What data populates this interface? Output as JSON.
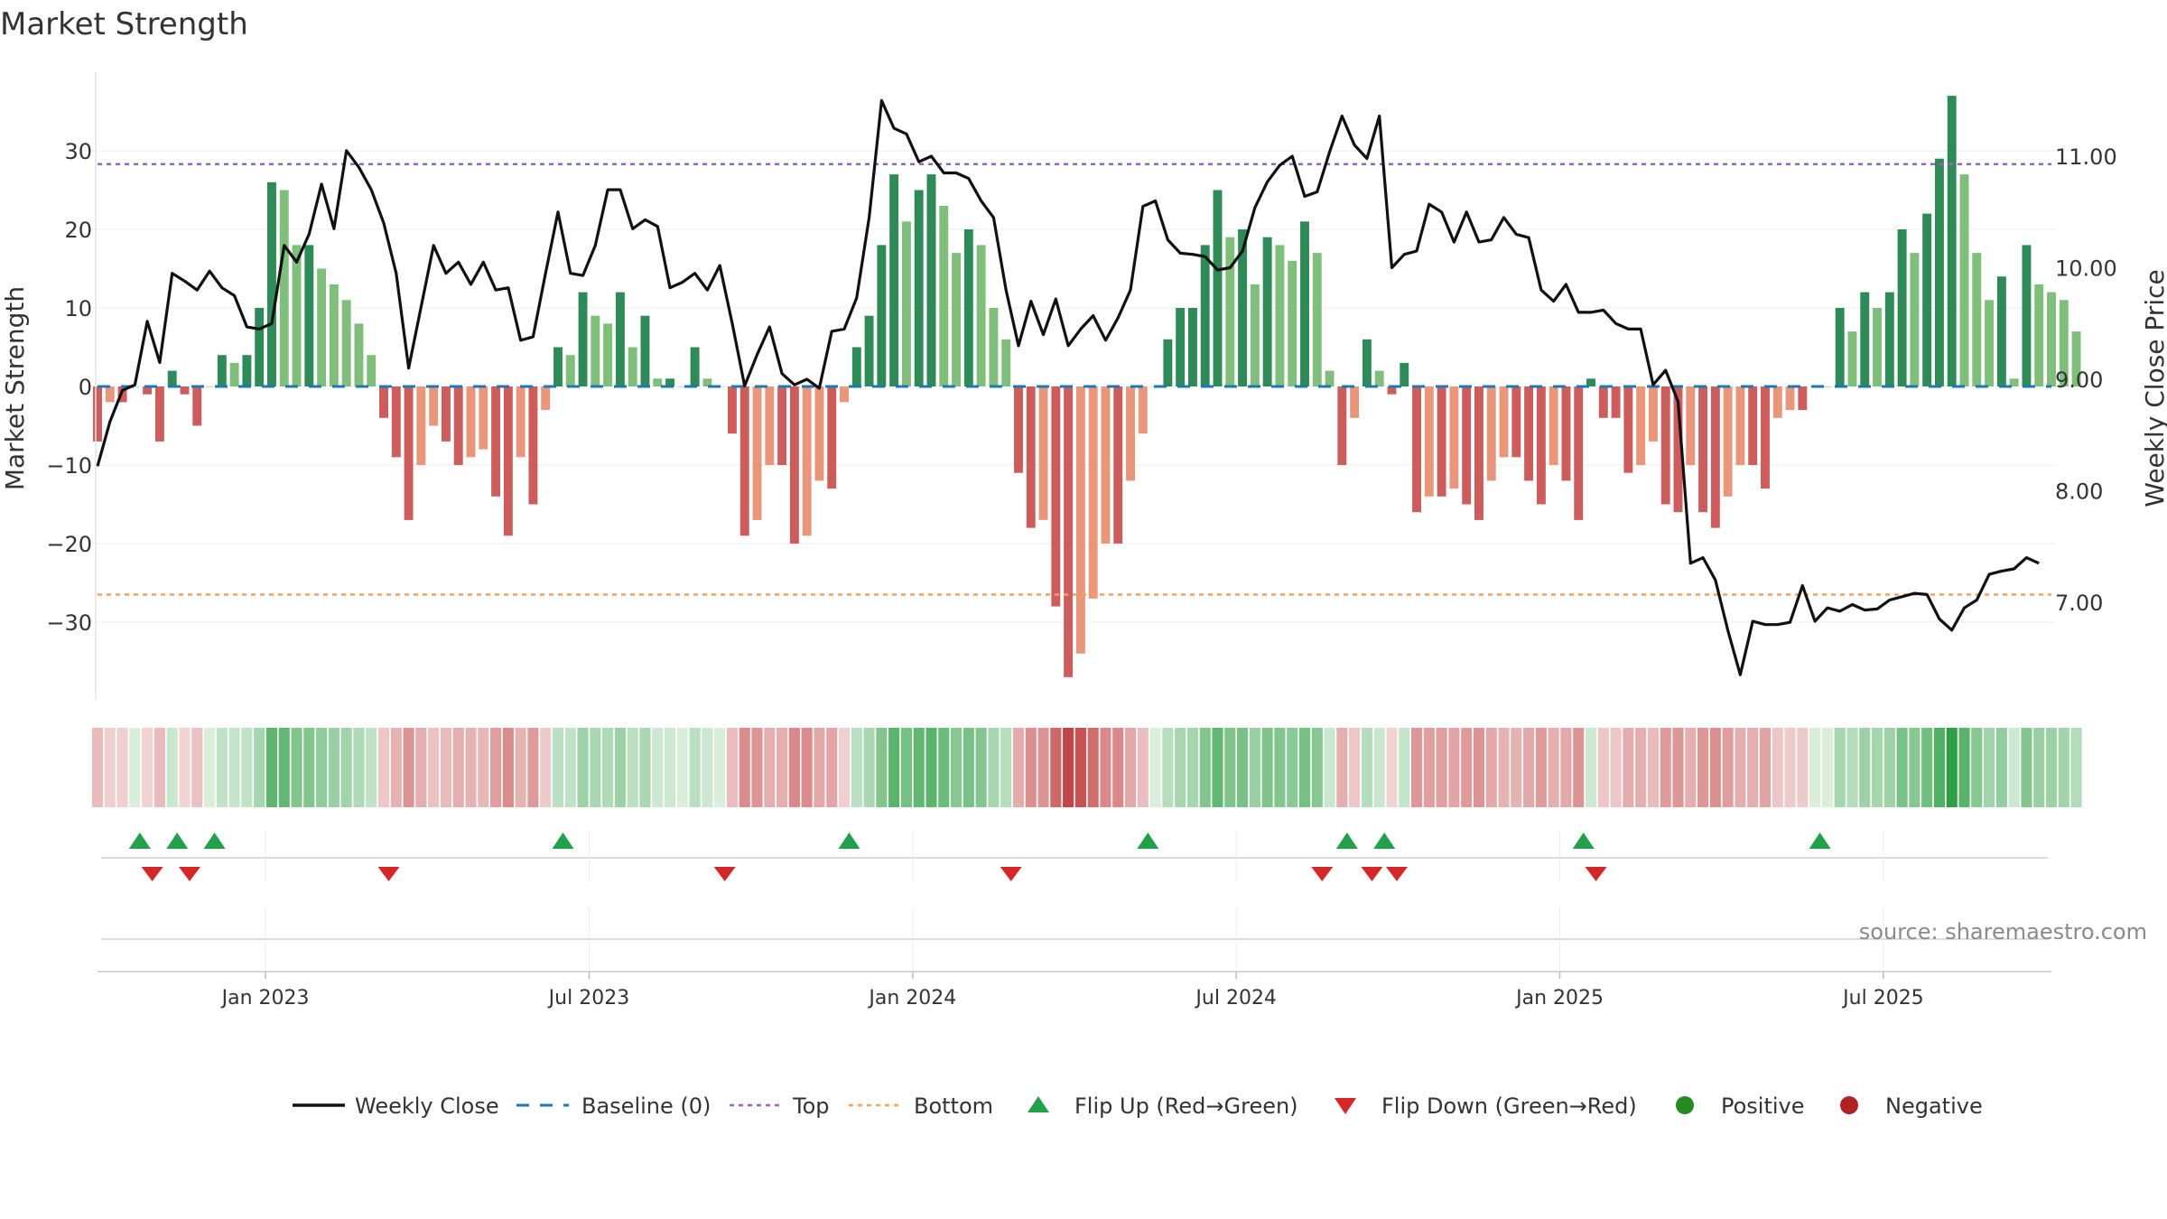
{
  "chart_data": {
    "type": "bar",
    "title": "Market Strength",
    "ylabel": "Market Strength",
    "y2label": "Weekly Close Price",
    "source": "source: sharemaestro.com",
    "ylim": [
      -40,
      40
    ],
    "y_ticks": [
      30,
      20,
      10,
      0,
      -10,
      -20,
      -30
    ],
    "y_tick_labels": [
      "30",
      "20",
      "10",
      "0",
      "−10",
      "−20",
      "−30"
    ],
    "y2lim": [
      6.0,
      11.75
    ],
    "y2_ticks": [
      11.0,
      10.0,
      9.0,
      8.0,
      7.0
    ],
    "y2_tick_labels": [
      "11.00",
      "10.00",
      "9.00",
      "8.00",
      "7.00"
    ],
    "top_level": 28.3,
    "bottom_level": -26.5,
    "x_ticks": [
      {
        "label": "Jan 2023",
        "week": 20
      },
      {
        "label": "Jul 2023",
        "week": 46
      },
      {
        "label": "Jan 2024",
        "week": 72
      },
      {
        "label": "Jul 2024",
        "week": 98
      },
      {
        "label": "Jan 2025",
        "week": 124
      },
      {
        "label": "Jul 2025",
        "week": 150
      }
    ],
    "start_week": 6.5,
    "weeks": 158,
    "strength": [
      -7,
      -2,
      -2,
      0,
      -1,
      -7,
      2,
      -1,
      -5,
      0,
      4,
      3,
      4,
      10,
      26,
      25,
      18,
      18,
      15,
      13,
      11,
      8,
      4,
      -4,
      -9,
      -17,
      -10,
      -5,
      -7,
      -10,
      -9,
      -8,
      -14,
      -19,
      -9,
      -15,
      -3,
      5,
      4,
      12,
      9,
      8,
      12,
      5,
      9,
      1,
      1,
      0,
      5,
      1,
      0,
      -6,
      -19,
      -17,
      -10,
      -10,
      -20,
      -19,
      -12,
      -13,
      -2,
      5,
      9,
      18,
      27,
      21,
      25,
      27,
      23,
      17,
      20,
      18,
      10,
      6,
      -11,
      -18,
      -17,
      -28,
      -37,
      -34,
      -27,
      -20,
      -20,
      -12,
      -6,
      0,
      6,
      10,
      10,
      18,
      25,
      19,
      20,
      13,
      19,
      18,
      16,
      21,
      17,
      2,
      -10,
      -4,
      6,
      2,
      -1,
      3,
      -16,
      -14,
      -14,
      -13,
      -15,
      -17,
      -12,
      -9,
      -9,
      -12,
      -15,
      -10,
      -12,
      -17,
      1,
      -4,
      -4,
      -11,
      -10,
      -7,
      -15,
      -16,
      -10,
      -16,
      -18,
      -14,
      -10,
      -10,
      -13,
      -4,
      -3,
      -3,
      0,
      0,
      10,
      7,
      12,
      10,
      12,
      20,
      17,
      22,
      29,
      37,
      27,
      17,
      11,
      14,
      1,
      18,
      13,
      12,
      11,
      7
    ],
    "close": [
      8.22,
      8.62,
      8.9,
      8.95,
      9.52,
      9.15,
      9.95,
      9.88,
      9.8,
      9.97,
      9.82,
      9.75,
      9.47,
      9.45,
      9.5,
      10.2,
      10.05,
      10.3,
      10.75,
      10.35,
      11.05,
      10.9,
      10.7,
      10.4,
      9.95,
      9.1,
      9.65,
      10.2,
      9.95,
      10.05,
      9.85,
      10.05,
      9.8,
      9.82,
      9.35,
      9.38,
      9.95,
      10.5,
      9.95,
      9.93,
      10.2,
      10.7,
      10.7,
      10.35,
      10.43,
      10.37,
      9.82,
      9.87,
      9.95,
      9.8,
      10.02,
      9.5,
      8.94,
      9.22,
      9.47,
      9.05,
      8.95,
      9.0,
      8.92,
      9.43,
      9.45,
      9.73,
      10.45,
      11.5,
      11.25,
      11.2,
      10.95,
      11.0,
      10.85,
      10.85,
      10.8,
      10.6,
      10.45,
      9.8,
      9.3,
      9.7,
      9.4,
      9.72,
      9.3,
      9.45,
      9.57,
      9.35,
      9.55,
      9.8,
      10.55,
      10.6,
      10.25,
      10.13,
      10.12,
      10.1,
      9.98,
      10.0,
      10.15,
      10.54,
      10.77,
      10.92,
      11.0,
      10.64,
      10.68,
      11.04,
      11.36,
      11.1,
      10.98,
      11.36,
      10.0,
      10.12,
      10.15,
      10.57,
      10.5,
      10.23,
      10.5,
      10.23,
      10.25,
      10.45,
      10.3,
      10.27,
      9.8,
      9.7,
      9.85,
      9.6,
      9.6,
      9.62,
      9.5,
      9.45,
      9.45,
      8.95,
      9.08,
      8.8,
      7.35,
      7.4,
      7.2,
      6.75,
      6.35,
      6.83,
      6.8,
      6.8,
      6.82,
      7.15,
      6.83,
      6.95,
      6.92,
      6.98,
      6.93,
      6.94,
      7.02,
      7.05,
      7.08,
      7.07,
      6.85,
      6.75,
      6.95,
      7.02,
      7.25,
      7.28,
      7.3,
      7.4,
      7.35
    ],
    "flips_up": [
      9.9,
      12.9,
      15.9,
      43.9,
      66.9,
      90.9,
      106.9,
      109.9,
      125.9,
      144.9
    ],
    "flips_down": [
      10.9,
      13.9,
      29.9,
      56.9,
      79.9,
      104.9,
      108.9,
      110.9,
      126.9
    ],
    "legend": [
      {
        "label": "Weekly Close",
        "symbol": "line"
      },
      {
        "label": "Baseline (0)",
        "symbol": "dash"
      },
      {
        "label": "Top",
        "symbol": "dot-purple"
      },
      {
        "label": "Bottom",
        "symbol": "dot-orange"
      },
      {
        "label": "Flip Up (Red→Green)",
        "symbol": "tri-up"
      },
      {
        "label": "Flip Down (Green→Red)",
        "symbol": "tri-down"
      },
      {
        "label": "Positive",
        "symbol": "dot-green"
      },
      {
        "label": "Negative",
        "symbol": "dot-red"
      }
    ],
    "colors": {
      "strong_green": "#2e8b57",
      "light_green": "#7fbf7b",
      "strong_red": "#cd5c5c",
      "light_red": "#e9967a",
      "close_line": "#111111",
      "baseline": "#1f77b4",
      "top_line": "#9467bd",
      "bottom_line": "#f4a460",
      "flip_up": "#22a04b",
      "flip_down": "#d62728",
      "positive": "#228b22",
      "negative": "#b22222"
    }
  }
}
